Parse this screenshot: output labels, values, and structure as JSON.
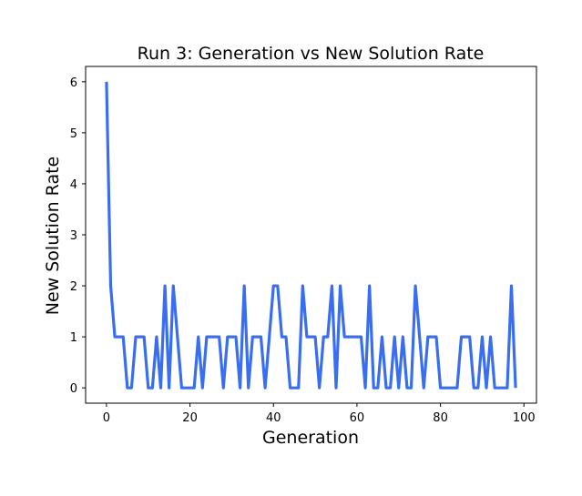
{
  "chart_data": {
    "type": "line",
    "title": "Run 3: Generation vs New Solution Rate",
    "xlabel": "Generation",
    "ylabel": "New Solution Rate",
    "xlim": [
      -5,
      103
    ],
    "ylim": [
      -0.3,
      6.3
    ],
    "x_ticks": [
      0,
      20,
      40,
      60,
      80,
      100
    ],
    "y_ticks": [
      0,
      1,
      2,
      3,
      4,
      5,
      6
    ],
    "grid": false,
    "colors": {
      "line": "#3a6ef0",
      "axes": "#000000"
    },
    "x": [
      0,
      1,
      2,
      3,
      4,
      5,
      6,
      7,
      8,
      9,
      10,
      11,
      12,
      13,
      14,
      15,
      16,
      17,
      18,
      19,
      20,
      21,
      22,
      23,
      24,
      25,
      26,
      27,
      28,
      29,
      30,
      31,
      32,
      33,
      34,
      35,
      36,
      37,
      38,
      39,
      40,
      41,
      42,
      43,
      44,
      45,
      46,
      47,
      48,
      49,
      50,
      51,
      52,
      53,
      54,
      55,
      56,
      57,
      58,
      59,
      60,
      61,
      62,
      63,
      64,
      65,
      66,
      67,
      68,
      69,
      70,
      71,
      72,
      73,
      74,
      75,
      76,
      77,
      78,
      79,
      80,
      81,
      82,
      83,
      84,
      85,
      86,
      87,
      88,
      89,
      90,
      91,
      92,
      93,
      94,
      95,
      96,
      97,
      98
    ],
    "series": [
      {
        "values": [
          6,
          2,
          1,
          1,
          1,
          0,
          0,
          1,
          1,
          1,
          0,
          0,
          1,
          0,
          2,
          0,
          2,
          1,
          0,
          0,
          0,
          0,
          1,
          0,
          1,
          1,
          1,
          1,
          0,
          1,
          1,
          1,
          0,
          2,
          0,
          1,
          1,
          1,
          0,
          1,
          2,
          2,
          1,
          1,
          0,
          0,
          0,
          2,
          1,
          1,
          1,
          0,
          1,
          1,
          2,
          0,
          2,
          1,
          1,
          1,
          1,
          1,
          0,
          2,
          0,
          0,
          1,
          0,
          0,
          1,
          0,
          1,
          0,
          0,
          2,
          1,
          0,
          1,
          1,
          1,
          0,
          0,
          0,
          0,
          0,
          1,
          1,
          1,
          0,
          0,
          1,
          0,
          1,
          0,
          0,
          0,
          0,
          2,
          0
        ]
      }
    ]
  }
}
